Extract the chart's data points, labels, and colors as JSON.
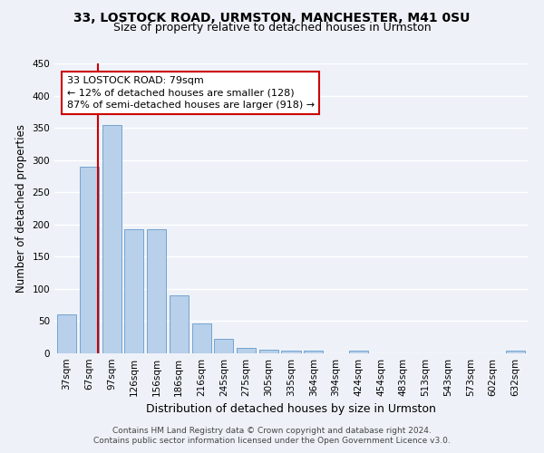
{
  "title1": "33, LOSTOCK ROAD, URMSTON, MANCHESTER, M41 0SU",
  "title2": "Size of property relative to detached houses in Urmston",
  "xlabel": "Distribution of detached houses by size in Urmston",
  "ylabel": "Number of detached properties",
  "categories": [
    "37sqm",
    "67sqm",
    "97sqm",
    "126sqm",
    "156sqm",
    "186sqm",
    "216sqm",
    "245sqm",
    "275sqm",
    "305sqm",
    "335sqm",
    "364sqm",
    "394sqm",
    "424sqm",
    "454sqm",
    "483sqm",
    "513sqm",
    "543sqm",
    "573sqm",
    "602sqm",
    "632sqm"
  ],
  "values": [
    60,
    290,
    355,
    192,
    192,
    90,
    47,
    22,
    9,
    5,
    4,
    4,
    0,
    4,
    0,
    0,
    0,
    0,
    0,
    0,
    4
  ],
  "bar_color": "#b8d0ea",
  "bar_edgecolor": "#6699cc",
  "annotation_text": "33 LOSTOCK ROAD: 79sqm\n← 12% of detached houses are smaller (128)\n87% of semi-detached houses are larger (918) →",
  "annotation_box_color": "#ffffff",
  "annotation_box_edgecolor": "#cc0000",
  "vline_color": "#cc0000",
  "ylim": [
    0,
    450
  ],
  "yticks": [
    0,
    50,
    100,
    150,
    200,
    250,
    300,
    350,
    400,
    450
  ],
  "footer1": "Contains HM Land Registry data © Crown copyright and database right 2024.",
  "footer2": "Contains public sector information licensed under the Open Government Licence v3.0.",
  "bg_color": "#eef2f8",
  "grid_color": "#ffffff",
  "title1_fontsize": 10,
  "title2_fontsize": 9,
  "xlabel_fontsize": 9,
  "ylabel_fontsize": 8.5,
  "tick_fontsize": 7.5,
  "footer_fontsize": 6.5,
  "annot_fontsize": 8
}
